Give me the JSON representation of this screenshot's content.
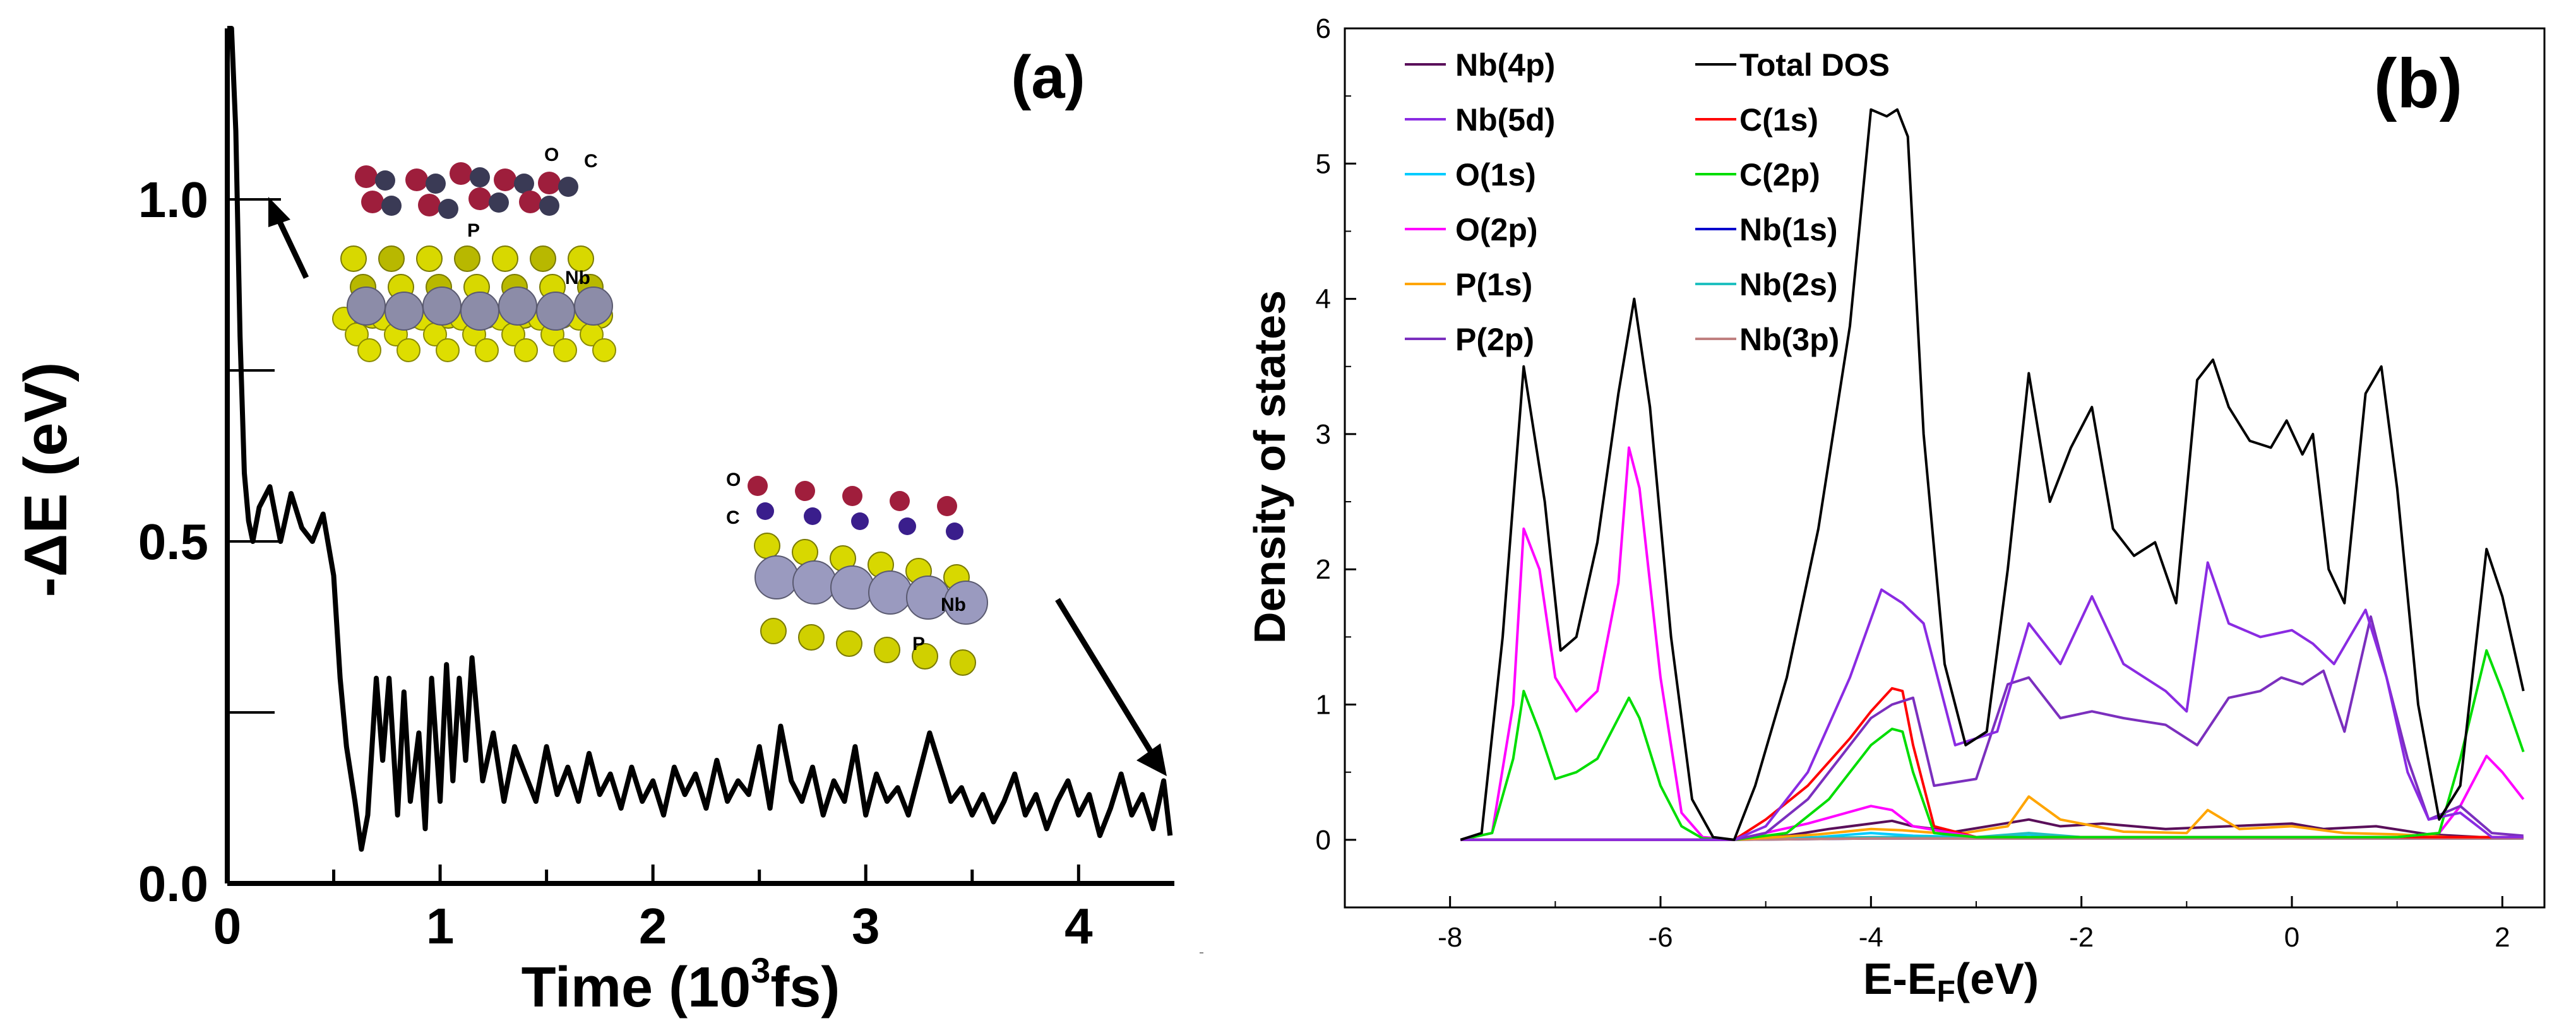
{
  "chart_data": [
    {
      "panel": "(a)",
      "type": "line",
      "xlabel": "Time (10",
      "xlabel_sup": "3",
      "xlabel_end": "fs)",
      "ylabel": "-ΔE (eV)",
      "xlim": [
        0,
        4.45
      ],
      "ylim": [
        0,
        1.25
      ],
      "x_ticks": [
        "0",
        "1",
        "2",
        "3",
        "4"
      ],
      "y_ticks": [
        "0.0",
        "0.5",
        "1.0"
      ],
      "series": [
        {
          "color": "#000000",
          "x": [
            0.0,
            0.02,
            0.04,
            0.06,
            0.08,
            0.1,
            0.12,
            0.15,
            0.2,
            0.25,
            0.3,
            0.35,
            0.4,
            0.45,
            0.5,
            0.53,
            0.56,
            0.6,
            0.63,
            0.66,
            0.7,
            0.73,
            0.76,
            0.8,
            0.83,
            0.86,
            0.9,
            0.93,
            0.96,
            1.0,
            1.03,
            1.06,
            1.09,
            1.12,
            1.15,
            1.2,
            1.25,
            1.3,
            1.35,
            1.4,
            1.45,
            1.5,
            1.55,
            1.6,
            1.65,
            1.7,
            1.75,
            1.8,
            1.85,
            1.9,
            1.95,
            2.0,
            2.05,
            2.1,
            2.15,
            2.2,
            2.25,
            2.3,
            2.35,
            2.4,
            2.45,
            2.5,
            2.55,
            2.6,
            2.65,
            2.7,
            2.75,
            2.8,
            2.85,
            2.9,
            2.95,
            3.0,
            3.05,
            3.1,
            3.15,
            3.2,
            3.25,
            3.3,
            3.35,
            3.4,
            3.45,
            3.5,
            3.55,
            3.6,
            3.65,
            3.7,
            3.75,
            3.8,
            3.85,
            3.9,
            3.95,
            4.0,
            4.05,
            4.1,
            4.15,
            4.2,
            4.25,
            4.3,
            4.35,
            4.4,
            4.43
          ],
          "y": [
            1.25,
            1.25,
            1.1,
            0.8,
            0.6,
            0.53,
            0.5,
            0.55,
            0.58,
            0.5,
            0.57,
            0.52,
            0.5,
            0.54,
            0.45,
            0.3,
            0.2,
            0.12,
            0.05,
            0.1,
            0.3,
            0.18,
            0.3,
            0.1,
            0.28,
            0.12,
            0.22,
            0.08,
            0.3,
            0.12,
            0.32,
            0.15,
            0.3,
            0.18,
            0.33,
            0.15,
            0.22,
            0.12,
            0.2,
            0.16,
            0.12,
            0.2,
            0.13,
            0.17,
            0.12,
            0.19,
            0.13,
            0.16,
            0.11,
            0.17,
            0.12,
            0.15,
            0.1,
            0.17,
            0.13,
            0.16,
            0.11,
            0.18,
            0.12,
            0.15,
            0.13,
            0.2,
            0.11,
            0.23,
            0.15,
            0.12,
            0.17,
            0.1,
            0.15,
            0.12,
            0.2,
            0.1,
            0.16,
            0.12,
            0.14,
            0.1,
            0.16,
            0.22,
            0.17,
            0.12,
            0.14,
            0.1,
            0.13,
            0.09,
            0.12,
            0.16,
            0.1,
            0.13,
            0.08,
            0.12,
            0.15,
            0.1,
            0.13,
            0.07,
            0.11,
            0.16,
            0.1,
            0.13,
            0.08,
            0.15,
            0.07
          ]
        }
      ],
      "annotations": [
        "O",
        "C",
        "P",
        "Nb",
        "O",
        "C",
        "Nb",
        "P"
      ]
    },
    {
      "panel": "(b)",
      "type": "line",
      "xlabel": "E-E",
      "xlabel_sub": "F",
      "xlabel_end": "(eV)",
      "ylabel": "Density of states",
      "xlim": [
        -9,
        2.4
      ],
      "ylim": [
        -0.5,
        6
      ],
      "x_ticks": [
        -8,
        -6,
        -4,
        -2,
        0,
        2
      ],
      "y_ticks": [
        0,
        1,
        2,
        3,
        4,
        5,
        6
      ],
      "legend_placement": "top-left, two columns",
      "series": [
        {
          "name": "Nb(4p)",
          "color": "#5a0f5a",
          "x": [
            -7.9,
            -5.3,
            -4.8,
            -4.4,
            -4.0,
            -3.8,
            -3.6,
            -3.2,
            -2.5,
            -2.2,
            -1.8,
            -1.2,
            -0.6,
            0.0,
            0.3,
            0.8,
            1.3,
            1.8,
            2.2
          ],
          "y": [
            0,
            0,
            0.03,
            0.08,
            0.12,
            0.14,
            0.1,
            0.06,
            0.15,
            0.1,
            0.12,
            0.08,
            0.1,
            0.12,
            0.08,
            0.1,
            0.04,
            0.02,
            0.02
          ]
        },
        {
          "name": "Nb(5d)",
          "color": "#8a2be2",
          "x": [
            -7.9,
            -5.3,
            -5.0,
            -4.6,
            -4.2,
            -3.9,
            -3.7,
            -3.5,
            -3.2,
            -2.8,
            -2.5,
            -2.2,
            -1.9,
            -1.6,
            -1.2,
            -1.0,
            -0.8,
            -0.6,
            -0.3,
            0.0,
            0.2,
            0.4,
            0.7,
            0.9,
            1.1,
            1.3,
            1.6,
            1.9,
            2.2
          ],
          "y": [
            0,
            0,
            0.1,
            0.5,
            1.2,
            1.85,
            1.75,
            1.6,
            0.7,
            0.8,
            1.6,
            1.3,
            1.8,
            1.3,
            1.1,
            0.95,
            2.05,
            1.6,
            1.5,
            1.55,
            1.45,
            1.3,
            1.7,
            1.2,
            0.5,
            0.15,
            0.2,
            0.02,
            0.02
          ]
        },
        {
          "name": "O(1s)",
          "color": "#00ccff",
          "x": [
            -7.9,
            -5.3,
            -4.5,
            -4.0,
            -3.6,
            -3.0,
            -2.5,
            -2.0,
            -1.0,
            0.0,
            1.0,
            2.2
          ],
          "y": [
            0,
            0,
            0.02,
            0.05,
            0.03,
            0.02,
            0.04,
            0.02,
            0.02,
            0.02,
            0.01,
            0.01
          ]
        },
        {
          "name": "O(2p)",
          "color": "#ff00ff",
          "x": [
            -7.9,
            -7.6,
            -7.4,
            -7.3,
            -7.15,
            -7.0,
            -6.8,
            -6.6,
            -6.4,
            -6.3,
            -6.2,
            -6.0,
            -5.8,
            -5.6,
            -5.3,
            -4.6,
            -4.0,
            -3.8,
            -3.6,
            -3.0,
            -2.0,
            0.0,
            1.0,
            1.4,
            1.6,
            1.85,
            2.0,
            2.2
          ],
          "y": [
            0,
            0.05,
            1.0,
            2.3,
            2.0,
            1.2,
            0.95,
            1.1,
            1.9,
            2.9,
            2.6,
            1.2,
            0.2,
            0.02,
            0,
            0.12,
            0.25,
            0.22,
            0.1,
            0.02,
            0.02,
            0.02,
            0.02,
            0.05,
            0.25,
            0.62,
            0.5,
            0.3
          ]
        },
        {
          "name": "P(1s)",
          "color": "#ffa500",
          "x": [
            -7.9,
            -5.3,
            -4.5,
            -4.0,
            -3.7,
            -3.2,
            -2.7,
            -2.5,
            -2.2,
            -1.6,
            -1.0,
            -0.8,
            -0.5,
            0.0,
            0.5,
            1.0,
            1.5,
            2.2
          ],
          "y": [
            0,
            0,
            0.04,
            0.08,
            0.07,
            0.04,
            0.1,
            0.32,
            0.15,
            0.06,
            0.05,
            0.22,
            0.08,
            0.1,
            0.05,
            0.04,
            0.02,
            0.02
          ]
        },
        {
          "name": "P(2p)",
          "color": "#7b2fbe",
          "x": [
            -7.9,
            -5.3,
            -5.0,
            -4.6,
            -4.2,
            -4.0,
            -3.8,
            -3.6,
            -3.4,
            -3.0,
            -2.7,
            -2.5,
            -2.2,
            -1.9,
            -1.6,
            -1.2,
            -0.9,
            -0.6,
            -0.3,
            -0.1,
            0.1,
            0.3,
            0.5,
            0.75,
            0.9,
            1.1,
            1.3,
            1.6,
            1.9,
            2.2
          ],
          "y": [
            0,
            0,
            0.05,
            0.3,
            0.7,
            0.9,
            1.0,
            1.05,
            0.4,
            0.45,
            1.15,
            1.2,
            0.9,
            0.95,
            0.9,
            0.85,
            0.7,
            1.05,
            1.1,
            1.2,
            1.15,
            1.25,
            0.8,
            1.65,
            1.2,
            0.6,
            0.15,
            0.25,
            0.05,
            0.03
          ]
        },
        {
          "name": "Total DOS",
          "color": "#000000",
          "x": [
            -7.9,
            -7.7,
            -7.5,
            -7.3,
            -7.1,
            -6.95,
            -6.8,
            -6.6,
            -6.4,
            -6.25,
            -6.1,
            -5.9,
            -5.7,
            -5.5,
            -5.3,
            -5.1,
            -4.8,
            -4.5,
            -4.2,
            -4.0,
            -3.85,
            -3.75,
            -3.65,
            -3.5,
            -3.3,
            -3.1,
            -2.9,
            -2.7,
            -2.5,
            -2.3,
            -2.1,
            -1.9,
            -1.7,
            -1.5,
            -1.3,
            -1.1,
            -0.9,
            -0.75,
            -0.6,
            -0.4,
            -0.2,
            -0.05,
            0.1,
            0.2,
            0.35,
            0.5,
            0.7,
            0.85,
            1.0,
            1.2,
            1.4,
            1.6,
            1.85,
            2.0,
            2.2
          ],
          "y": [
            0,
            0.05,
            1.5,
            3.5,
            2.5,
            1.4,
            1.5,
            2.2,
            3.3,
            4.0,
            3.2,
            1.5,
            0.3,
            0.02,
            0,
            0.4,
            1.2,
            2.3,
            3.8,
            5.4,
            5.35,
            5.4,
            5.2,
            3.0,
            1.3,
            0.7,
            0.8,
            2.0,
            3.45,
            2.5,
            2.9,
            3.2,
            2.3,
            2.1,
            2.2,
            1.75,
            3.4,
            3.55,
            3.2,
            2.95,
            2.9,
            3.1,
            2.85,
            3.0,
            2.0,
            1.75,
            3.3,
            3.5,
            2.6,
            1.0,
            0.15,
            0.4,
            2.15,
            1.8,
            1.1
          ]
        },
        {
          "name": "C(1s)",
          "color": "#ff0000",
          "x": [
            -7.9,
            -5.3,
            -5.0,
            -4.6,
            -4.2,
            -4.0,
            -3.8,
            -3.7,
            -3.6,
            -3.4,
            -3.0,
            -2.0,
            0.0,
            2.2
          ],
          "y": [
            0,
            0,
            0.15,
            0.4,
            0.75,
            0.95,
            1.12,
            1.1,
            0.7,
            0.1,
            0.02,
            0.02,
            0.02,
            0.02
          ]
        },
        {
          "name": "C(2p)",
          "color": "#00dd00",
          "x": [
            -7.9,
            -7.6,
            -7.4,
            -7.3,
            -7.15,
            -7.0,
            -6.8,
            -6.6,
            -6.4,
            -6.3,
            -6.2,
            -6.0,
            -5.8,
            -5.6,
            -5.3,
            -4.8,
            -4.4,
            -4.0,
            -3.8,
            -3.7,
            -3.6,
            -3.4,
            -3.0,
            -2.0,
            0.0,
            1.0,
            1.4,
            1.6,
            1.85,
            2.0,
            2.2
          ],
          "y": [
            0,
            0.05,
            0.6,
            1.1,
            0.8,
            0.45,
            0.5,
            0.6,
            0.9,
            1.05,
            0.9,
            0.4,
            0.1,
            0.01,
            0,
            0.05,
            0.3,
            0.7,
            0.82,
            0.8,
            0.5,
            0.05,
            0.02,
            0.02,
            0.02,
            0.02,
            0.05,
            0.6,
            1.4,
            1.1,
            0.65
          ]
        },
        {
          "name": "Nb(1s)",
          "color": "#0000cc",
          "x": [
            -7.9,
            -5.3,
            -4.0,
            -3.0,
            -2.0,
            -1.0,
            0.0,
            1.0,
            2.2
          ],
          "y": [
            0,
            0,
            0.01,
            0.01,
            0.01,
            0.01,
            0.01,
            0.01,
            0.01
          ]
        },
        {
          "name": "Nb(2s)",
          "color": "#20c0c0",
          "x": [
            -7.9,
            -5.3,
            -4.0,
            -3.0,
            -2.5,
            -2.0,
            -1.0,
            0.0,
            1.0,
            2.2
          ],
          "y": [
            0,
            0,
            0.02,
            0.02,
            0.05,
            0.02,
            0.02,
            0.02,
            0.02,
            0.01
          ]
        },
        {
          "name": "Nb(3p)",
          "color": "#c08080",
          "x": [
            -7.9,
            -5.3,
            -4.0,
            -3.0,
            -2.0,
            -1.0,
            0.0,
            1.0,
            2.2
          ],
          "y": [
            0,
            0,
            0.01,
            0.01,
            0.01,
            0.01,
            0.01,
            0.01,
            0.01
          ]
        }
      ]
    }
  ]
}
